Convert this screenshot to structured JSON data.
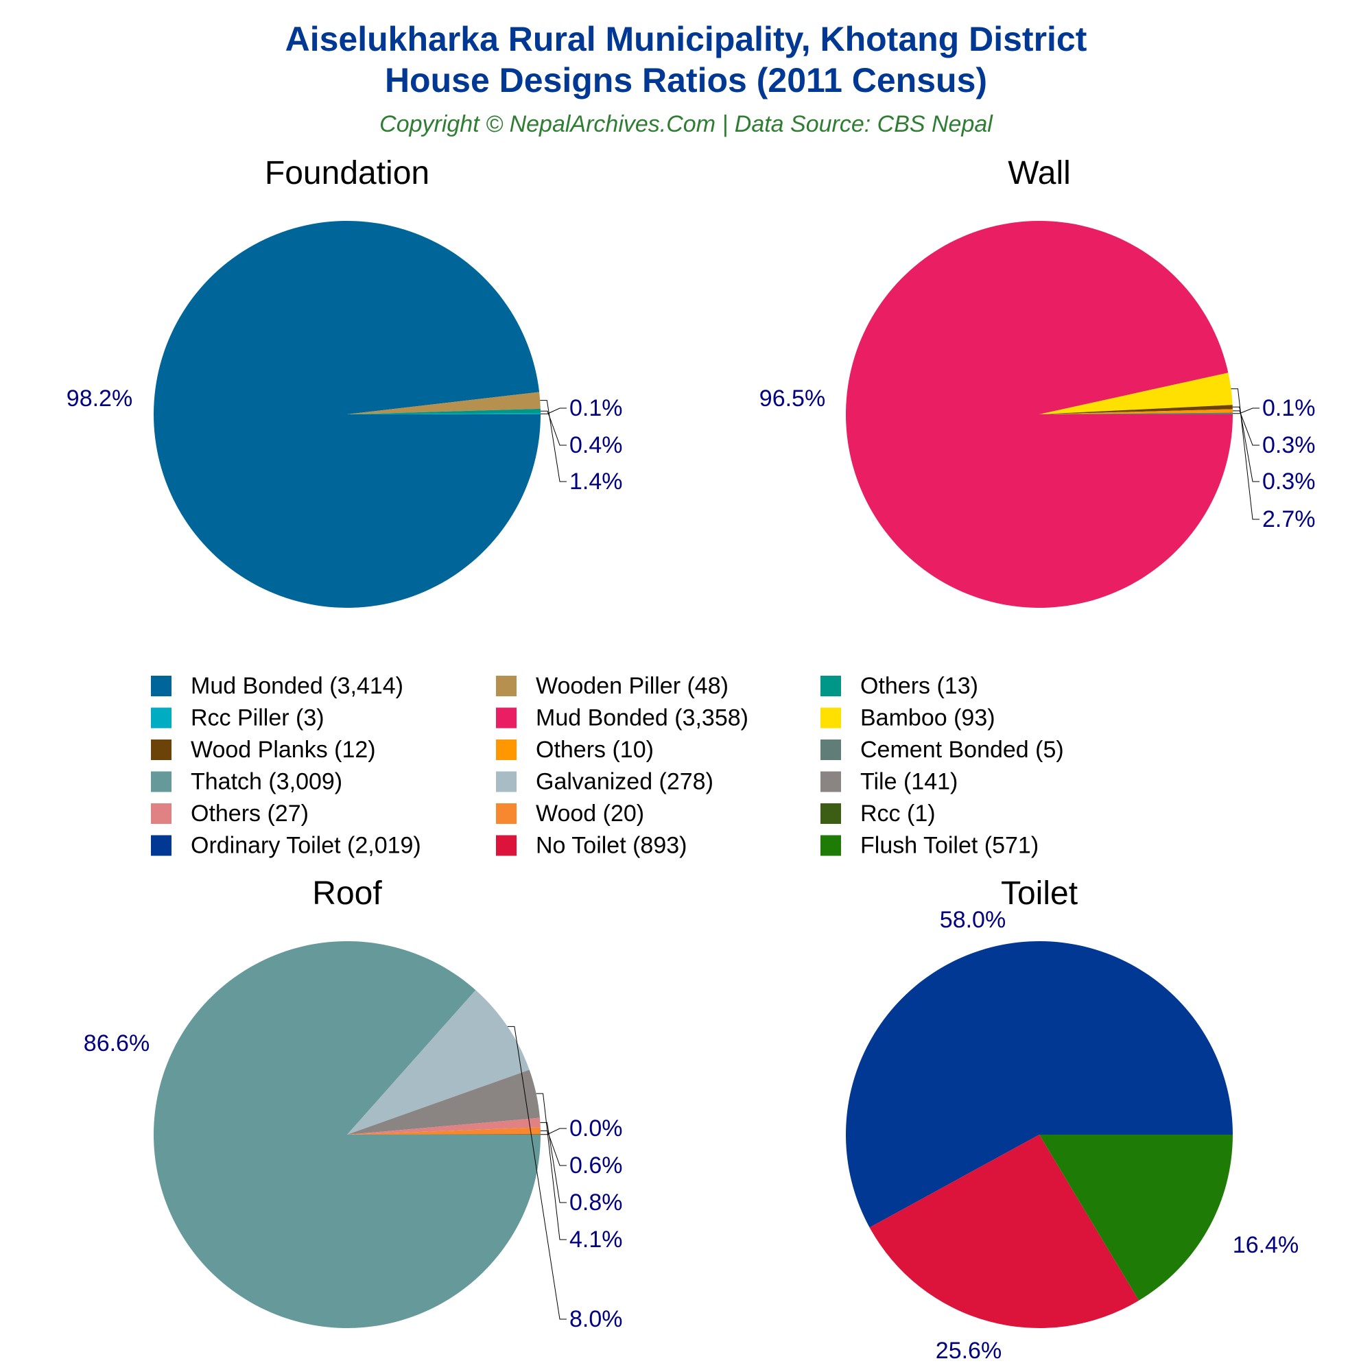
{
  "header": {
    "title_line1": "Aiselukharka Rural Municipality, Khotang District",
    "title_line2": "House Designs Ratios (2011 Census)",
    "subtitle": "Copyright © NepalArchives.Com | Data Source: CBS Nepal"
  },
  "chart_data": [
    {
      "type": "pie",
      "title": "Foundation",
      "slices": [
        {
          "label": "Mud Bonded",
          "value": 3414,
          "percent": "98.2%",
          "color": "#006699"
        },
        {
          "label": "Wooden Piller",
          "value": 48,
          "percent": "1.4%",
          "color": "#B5904F"
        },
        {
          "label": "Others",
          "value": 13,
          "percent": "0.4%",
          "color": "#009688"
        },
        {
          "label": "Rcc Piller",
          "value": 3,
          "percent": "0.1%",
          "color": "#00ACC1"
        }
      ]
    },
    {
      "type": "pie",
      "title": "Wall",
      "slices": [
        {
          "label": "Mud Bonded",
          "value": 3358,
          "percent": "96.5%",
          "color": "#E91E63"
        },
        {
          "label": "Bamboo",
          "value": 93,
          "percent": "2.7%",
          "color": "#FFE000"
        },
        {
          "label": "Wood Planks",
          "value": 12,
          "percent": "0.3%",
          "color": "#6B4309"
        },
        {
          "label": "Others",
          "value": 10,
          "percent": "0.3%",
          "color": "#FF9800"
        },
        {
          "label": "Cement Bonded",
          "value": 5,
          "percent": "0.1%",
          "color": "#617D78"
        }
      ]
    },
    {
      "type": "pie",
      "title": "Roof",
      "slices": [
        {
          "label": "Thatch",
          "value": 3009,
          "percent": "86.6%",
          "color": "#669999"
        },
        {
          "label": "Galvanized",
          "value": 278,
          "percent": "8.0%",
          "color": "#A8BCC6"
        },
        {
          "label": "Tile",
          "value": 141,
          "percent": "4.1%",
          "color": "#8A8583"
        },
        {
          "label": "Others",
          "value": 27,
          "percent": "0.8%",
          "color": "#E08283"
        },
        {
          "label": "Wood",
          "value": 20,
          "percent": "0.6%",
          "color": "#F7882F"
        },
        {
          "label": "Rcc",
          "value": 1,
          "percent": "0.0%",
          "color": "#3B5E14"
        }
      ]
    },
    {
      "type": "pie",
      "title": "Toilet",
      "slices": [
        {
          "label": "Ordinary Toilet",
          "value": 2019,
          "percent": "58.0%",
          "color": "#003893"
        },
        {
          "label": "No Toilet",
          "value": 893,
          "percent": "25.6%",
          "color": "#DC143C"
        },
        {
          "label": "Flush Toilet",
          "value": 571,
          "percent": "16.4%",
          "color": "#1E7B06"
        }
      ]
    }
  ],
  "legend": [
    {
      "label": "Mud Bonded (3,414)",
      "color": "#006699"
    },
    {
      "label": "Wooden Piller (48)",
      "color": "#B5904F"
    },
    {
      "label": "Others (13)",
      "color": "#009688"
    },
    {
      "label": "Rcc Piller (3)",
      "color": "#00ACC1"
    },
    {
      "label": "Mud Bonded (3,358)",
      "color": "#E91E63"
    },
    {
      "label": "Bamboo (93)",
      "color": "#FFE000"
    },
    {
      "label": "Wood Planks (12)",
      "color": "#6B4309"
    },
    {
      "label": "Others (10)",
      "color": "#FF9800"
    },
    {
      "label": "Cement Bonded (5)",
      "color": "#617D78"
    },
    {
      "label": "Thatch (3,009)",
      "color": "#669999"
    },
    {
      "label": "Galvanized (278)",
      "color": "#A8BCC6"
    },
    {
      "label": "Tile (141)",
      "color": "#8A8583"
    },
    {
      "label": "Others (27)",
      "color": "#E08283"
    },
    {
      "label": "Wood (20)",
      "color": "#F7882F"
    },
    {
      "label": "Rcc (1)",
      "color": "#3B5E14"
    },
    {
      "label": "Ordinary Toilet (2,019)",
      "color": "#003893"
    },
    {
      "label": "No Toilet (893)",
      "color": "#DC143C"
    },
    {
      "label": "Flush Toilet (571)",
      "color": "#1E7B06"
    }
  ]
}
